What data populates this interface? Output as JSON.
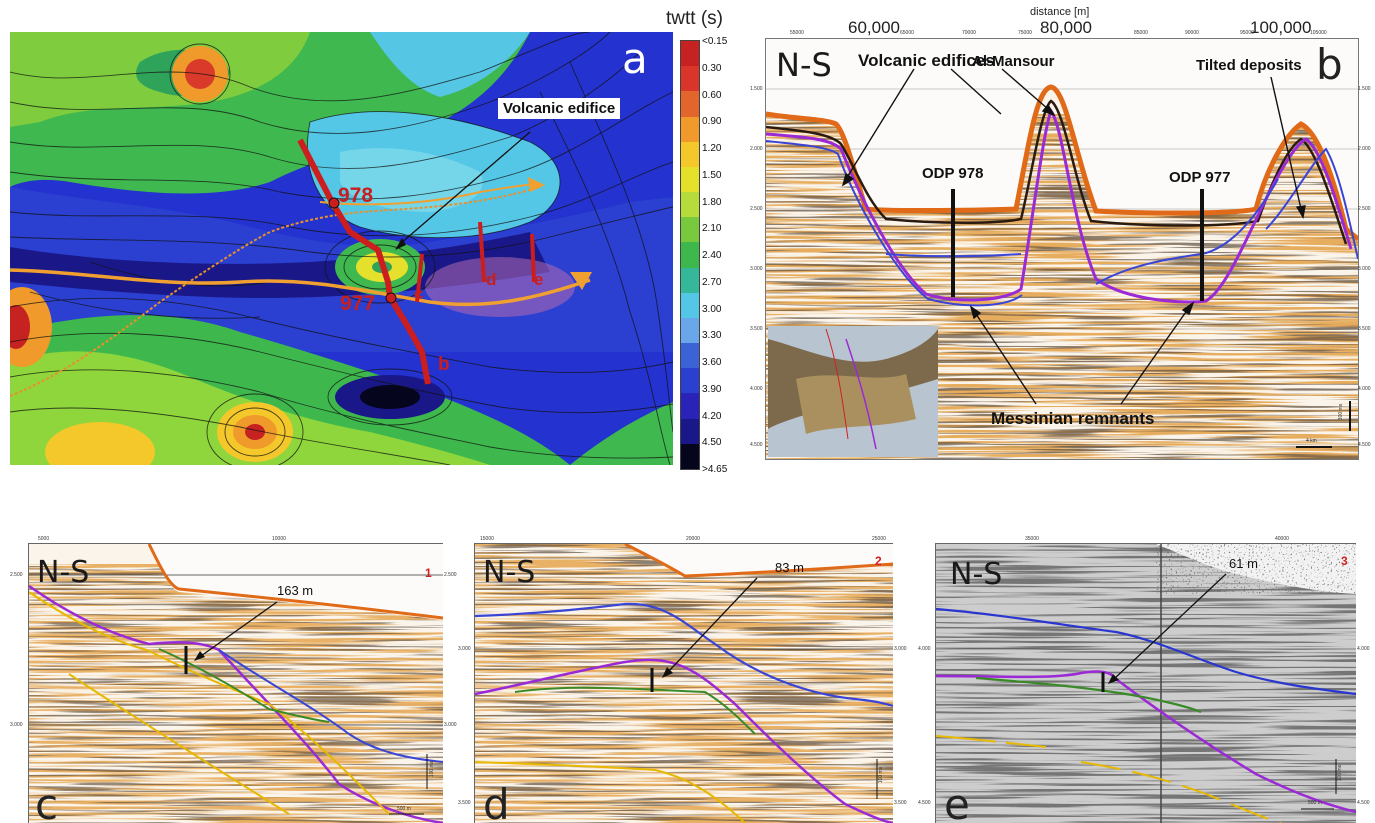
{
  "panel_a": {
    "letter": "a",
    "colorbar_title": "twtt (s)",
    "colorbar_ticks": [
      "<0.15",
      "0.30",
      "0.60",
      "0.90",
      "1.20",
      "1.50",
      "1.80",
      "2.10",
      "2.40",
      "2.70",
      "3.00",
      "3.30",
      "3.60",
      "3.90",
      "4.20",
      "4.50",
      ">4.65"
    ],
    "colorbar_colors": [
      "#c62222",
      "#d9352a",
      "#e2652b",
      "#ef9a2a",
      "#f4c72b",
      "#e4e02c",
      "#b5dc3a",
      "#79c93e",
      "#3eb84d",
      "#35b79a",
      "#55c7e6",
      "#6aa7ea",
      "#3b63d6",
      "#2b3fd1",
      "#2a23b8",
      "#1a1888",
      "#06051e"
    ],
    "annotation": "Volcanic edifice",
    "well_978": "978",
    "well_977": "977",
    "profile_b": "b",
    "profile_c": "c",
    "profile_d": "d",
    "profile_e": "e"
  },
  "panel_b": {
    "letter": "b",
    "axis_title": "distance [m]",
    "top_ticks": [
      "60,000",
      "80,000",
      "100,000"
    ],
    "small_top_ticks": [
      "55000",
      "65000",
      "70000",
      "75000",
      "85000",
      "90000",
      "95000",
      "105000"
    ],
    "left_ticks": [
      "1.500",
      "2.000",
      "2.500",
      "3.000",
      "3.500",
      "4.000",
      "4.500"
    ],
    "right_ticks": [
      "1.500",
      "2.000",
      "2.500",
      "3.000",
      "3.500",
      "4.000",
      "4.500"
    ],
    "orientation": "N-S",
    "labels": {
      "volcanic_edifices": "Volcanic edifices",
      "al_mansour": "Al-Mansour",
      "tilted_deposits": "Tilted deposits",
      "odp978": "ODP 978",
      "odp977": "ODP 977",
      "messinian": "Messinian remnants"
    },
    "scale_vertical": "300 ms",
    "scale_horizontal": "4 km"
  },
  "panel_c": {
    "letter": "c",
    "number": "1",
    "orientation": "N-S",
    "measure": "163 m",
    "top_ticks": [
      "5000",
      "10000"
    ],
    "left_ticks": [
      "2.500",
      "3.000"
    ],
    "right_ticks": [
      "2.500",
      "3.000"
    ],
    "scale_vertical": "100 ms",
    "scale_horizontal": "500 m"
  },
  "panel_d": {
    "letter": "d",
    "number": "2",
    "orientation": "N-S",
    "measure": "83 m",
    "top_ticks": [
      "15000",
      "20000",
      "25000"
    ],
    "right_ticks": [
      "3.000",
      "3.500"
    ],
    "left_ticks": [
      "3.000",
      "3.500"
    ],
    "scale_vertical": "100 ms"
  },
  "panel_e": {
    "letter": "e",
    "number": "3",
    "orientation": "N-S",
    "measure": "61 m",
    "top_ticks": [
      "35000",
      "40000"
    ],
    "left_ticks": [
      "4.000",
      "4.500"
    ],
    "right_ticks": [
      "4.000",
      "4.500"
    ],
    "scale_vertical": "100 ms",
    "scale_horizontal": "500 m"
  }
}
